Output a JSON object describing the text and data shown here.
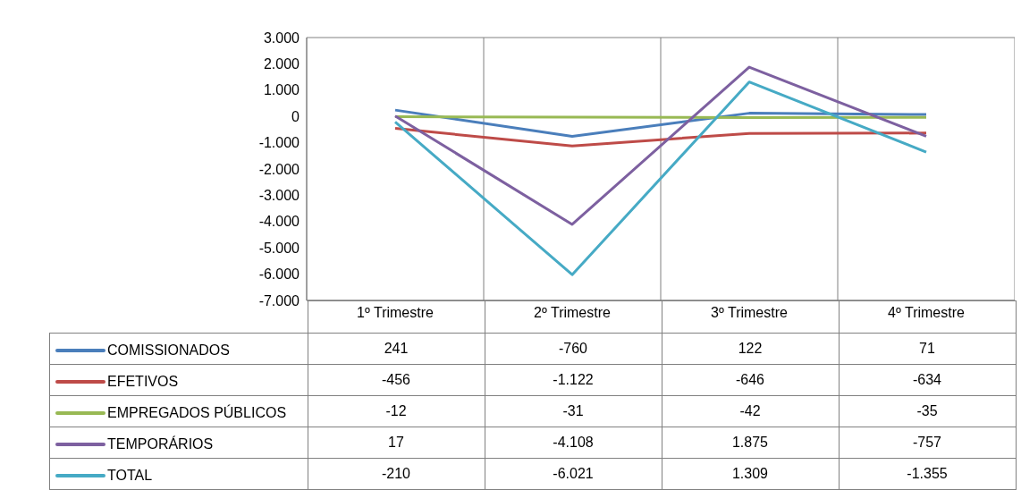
{
  "chart_data": {
    "type": "line",
    "categories": [
      "1º Trimestre",
      "2º Trimestre",
      "3º Trimestre",
      "4º Trimestre"
    ],
    "series": [
      {
        "name": "COMISSIONADOS",
        "color": "#4a7ebb",
        "values": [
          241,
          -760,
          122,
          71
        ],
        "value_labels": [
          "241",
          "-760",
          "122",
          "71"
        ]
      },
      {
        "name": "EFETIVOS",
        "color": "#be4b48",
        "values": [
          -456,
          -1122,
          -646,
          -634
        ],
        "value_labels": [
          "-456",
          "-1.122",
          "-646",
          "-634"
        ]
      },
      {
        "name": "EMPREGADOS PÚBLICOS",
        "color": "#98b954",
        "values": [
          -12,
          -31,
          -42,
          -35
        ],
        "value_labels": [
          "-12",
          "-31",
          "-42",
          "-35"
        ]
      },
      {
        "name": "TEMPORÁRIOS",
        "color": "#7d60a0",
        "values": [
          17,
          -4108,
          1875,
          -757
        ],
        "value_labels": [
          "17",
          "-4.108",
          "1.875",
          "-757"
        ]
      },
      {
        "name": "TOTAL",
        "color": "#46aac5",
        "values": [
          -210,
          -6021,
          1309,
          -1355
        ],
        "value_labels": [
          "-210",
          "-6.021",
          "1.309",
          "-1.355"
        ]
      }
    ],
    "ylim": [
      -7000,
      3000
    ],
    "yticks": [
      {
        "value": -7000,
        "label": "-7.000"
      },
      {
        "value": -6000,
        "label": "-6.000"
      },
      {
        "value": -5000,
        "label": "-5.000"
      },
      {
        "value": -4000,
        "label": "-4.000"
      },
      {
        "value": -3000,
        "label": "-3.000"
      },
      {
        "value": -2000,
        "label": "-2.000"
      },
      {
        "value": -1000,
        "label": "-1.000"
      },
      {
        "value": 0,
        "label": "0"
      },
      {
        "value": 1000,
        "label": "1.000"
      },
      {
        "value": 2000,
        "label": "2.000"
      },
      {
        "value": 3000,
        "label": "3.000"
      }
    ],
    "grid": true,
    "legend": "bottom",
    "marker": "none",
    "line_style": "solid"
  }
}
